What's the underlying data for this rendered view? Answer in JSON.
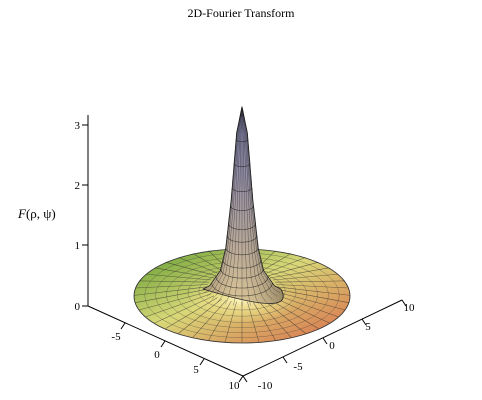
{
  "chart_data": {
    "type": "surface",
    "title": "2D-Fourier Transform",
    "zlabel_main": "F",
    "zlabel_args": "(ρ, ψ)",
    "xlabel": "",
    "ylabel": "",
    "x_ticks": [
      "-5",
      "0",
      "5",
      "10"
    ],
    "y_ticks": [
      "-10",
      "-5",
      "0",
      "5",
      "10"
    ],
    "z_ticks": [
      "0",
      "1",
      "2",
      "3"
    ],
    "xlim": [
      -10,
      10
    ],
    "ylim": [
      -10,
      10
    ],
    "zlim": [
      0,
      3.2
    ],
    "peak_value": 3.14,
    "domain": "radial disk, radius 10",
    "grid": false,
    "colors": {
      "peak": "#6b6b9a",
      "upper_slope": "#b3a290",
      "base_ring_inner": "#f2eaa0",
      "base_far": "#5c9a2e",
      "base_near": "#d96a4a"
    },
    "surface_samples": {
      "rho": [
        0,
        0.5,
        1,
        1.5,
        2,
        3,
        4,
        6,
        8,
        10
      ],
      "F": [
        3.14,
        2.7,
        1.6,
        0.8,
        0.42,
        0.17,
        0.08,
        0.03,
        0.015,
        0.01
      ]
    }
  }
}
